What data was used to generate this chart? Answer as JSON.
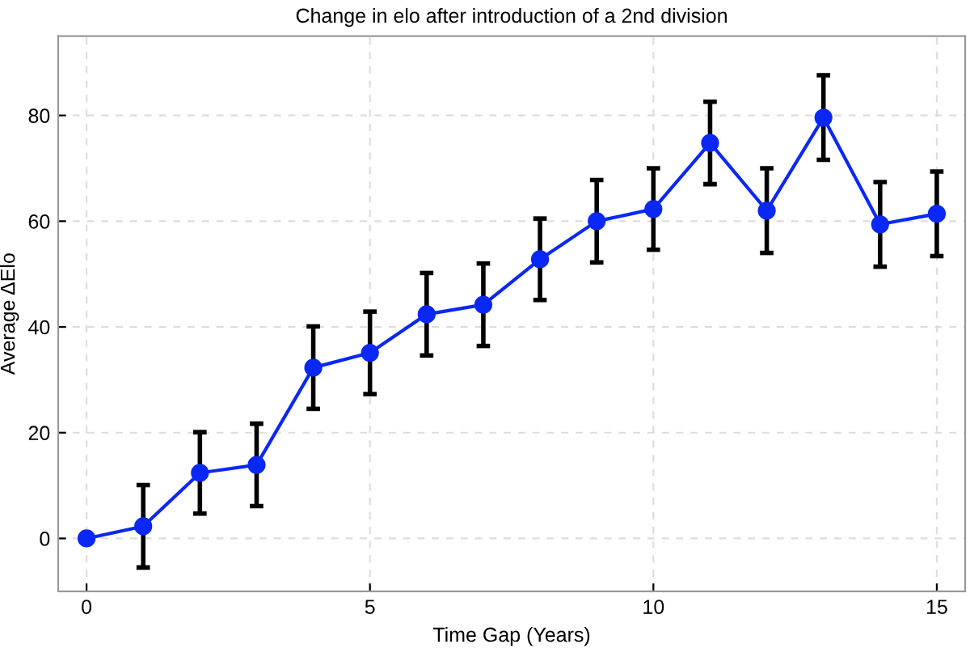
{
  "chart_data": {
    "type": "line",
    "title": "Change in elo after introduction of a 2nd division",
    "xlabel": "Time Gap (Years)",
    "ylabel": "Average ΔElo",
    "x": [
      0,
      1,
      2,
      3,
      4,
      5,
      6,
      7,
      8,
      9,
      10,
      11,
      12,
      13,
      14,
      15
    ],
    "series": [
      {
        "color": "#0a28f5",
        "values": [
          0,
          2.3,
          12.4,
          13.9,
          32.3,
          35.1,
          42.4,
          44.2,
          52.8,
          60.0,
          62.3,
          74.8,
          62.0,
          79.6,
          59.4,
          61.4
        ],
        "errors": [
          null,
          7.8,
          7.7,
          7.8,
          7.8,
          7.8,
          7.8,
          7.8,
          7.7,
          7.8,
          7.7,
          7.8,
          8.0,
          8.0,
          8.0,
          8.0
        ]
      }
    ],
    "xlim": [
      -0.5,
      15.5
    ],
    "ylim": [
      -10,
      95
    ],
    "xticks": [
      0,
      5,
      10,
      15
    ],
    "yticks": [
      0,
      20,
      40,
      60,
      80
    ],
    "grid": true,
    "marker": "circle",
    "line_style": "solid",
    "legend": false
  }
}
